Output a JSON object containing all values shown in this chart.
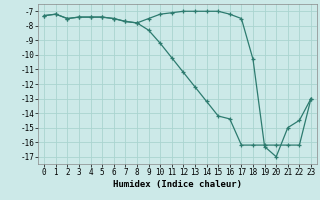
{
  "xlabel": "Humidex (Indice chaleur)",
  "background_color": "#cce9e8",
  "grid_color": "#aad4d0",
  "line_color": "#2d7b6f",
  "xlim": [
    -0.5,
    23.5
  ],
  "ylim": [
    -17.5,
    -6.5
  ],
  "xticks": [
    0,
    1,
    2,
    3,
    4,
    5,
    6,
    7,
    8,
    9,
    10,
    11,
    12,
    13,
    14,
    15,
    16,
    17,
    18,
    19,
    20,
    21,
    22,
    23
  ],
  "yticks": [
    -7,
    -8,
    -9,
    -10,
    -11,
    -12,
    -13,
    -14,
    -15,
    -16,
    -17
  ],
  "line1_x": [
    0,
    1,
    2,
    3,
    4,
    5,
    6,
    7,
    8,
    9,
    10,
    11,
    12,
    13,
    14,
    15,
    16,
    17,
    18,
    19,
    20,
    21,
    22,
    23
  ],
  "line1_y": [
    -7.3,
    -7.2,
    -7.5,
    -7.4,
    -7.4,
    -7.4,
    -7.5,
    -7.7,
    -7.8,
    -7.5,
    -7.2,
    -7.1,
    -7.0,
    -7.0,
    -7.0,
    -7.0,
    -7.2,
    -7.5,
    -10.3,
    -16.3,
    -17.0,
    -15.0,
    -14.5,
    -13.0
  ],
  "line2_x": [
    0,
    1,
    2,
    3,
    4,
    5,
    6,
    7,
    8,
    9,
    10,
    11,
    12,
    13,
    14,
    15,
    16,
    17,
    18,
    19,
    20,
    21,
    22,
    23
  ],
  "line2_y": [
    -7.3,
    -7.2,
    -7.5,
    -7.4,
    -7.4,
    -7.4,
    -7.5,
    -7.7,
    -7.8,
    -8.3,
    -9.2,
    -10.2,
    -11.2,
    -12.2,
    -13.2,
    -14.2,
    -14.4,
    -16.2,
    -16.2,
    -16.2,
    -16.2,
    -16.2,
    -16.2,
    -13.0
  ],
  "tick_fontsize": 5.5,
  "xlabel_fontsize": 6.5
}
